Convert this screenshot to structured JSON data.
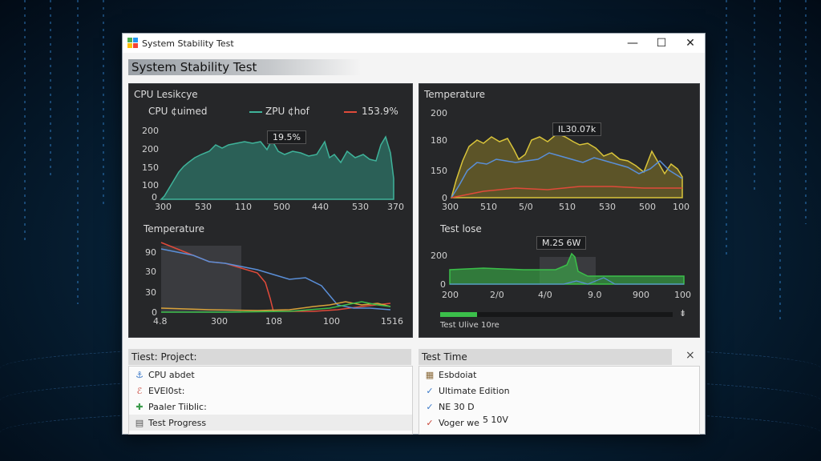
{
  "window": {
    "title": "System Stability Test",
    "controls": {
      "minimize": "—",
      "maximize": "☐",
      "close": "✕"
    }
  },
  "banner": {
    "title": "System Stability Test"
  },
  "panels": {
    "cpu": {
      "title": "CPU Lesikcye",
      "legend": [
        {
          "label": "CPU ¢uimed",
          "color": "#bdbdbd"
        },
        {
          "label": "ZPU ¢hof",
          "color": "#3fb39a"
        },
        {
          "label": "153.9%",
          "color": "#e04a3a"
        }
      ],
      "callout": "19.5%",
      "y_ticks": [
        "200",
        "200",
        "150",
        "100",
        "0"
      ],
      "x_ticks": [
        "300",
        "530",
        "110",
        "500",
        "440",
        "530",
        "370"
      ]
    },
    "temp_top": {
      "title": "Temperature",
      "callout": "IL30.07k",
      "y_ticks": [
        "200",
        "180",
        "150",
        "0"
      ],
      "x_ticks": [
        "300",
        "510",
        "5/0",
        "510",
        "530",
        "500",
        "100"
      ]
    },
    "temp_bottom": {
      "title": "Temperature",
      "y_ticks": [
        "90",
        "30",
        "30",
        "0"
      ],
      "x_ticks": [
        "4.8",
        "300",
        "108",
        "100",
        "1516"
      ]
    },
    "test_lose": {
      "title": "Test lose",
      "callout": "M.2S 6W",
      "y_ticks": [
        "200",
        "0"
      ],
      "x_ticks": [
        "200",
        "2/0",
        "4/0",
        "9.0",
        "900",
        "100"
      ],
      "progress": 0.16,
      "progress_label": "Test Ulive 10re",
      "progress_end": "⇟"
    }
  },
  "bottom": {
    "left_header": "Tiest: Project:",
    "left_items": [
      {
        "icon": "⚓",
        "label": "CPU abdet"
      },
      {
        "icon": "ℰ",
        "label": "EVEI0st:"
      },
      {
        "icon": "✚",
        "label": "Paaler Tiiblic:"
      },
      {
        "icon": "▤",
        "label": "Test Progress"
      }
    ],
    "right_header": "Test Time",
    "right_close": "×",
    "right_items": [
      {
        "icon": "▦",
        "label": "Esbdoiat"
      },
      {
        "icon": "✓",
        "label": "Ultimate Edition"
      },
      {
        "icon": "✓",
        "label": "NE 30 D"
      },
      {
        "icon": "✓",
        "label": "Voger we"
      }
    ],
    "right_extra": "5 10V"
  },
  "colors": {
    "teal": "#2f8f7e",
    "yellow": "#d9c43a",
    "blue": "#5a8fd8",
    "red": "#e04a3a",
    "green": "#3bbf4a"
  }
}
